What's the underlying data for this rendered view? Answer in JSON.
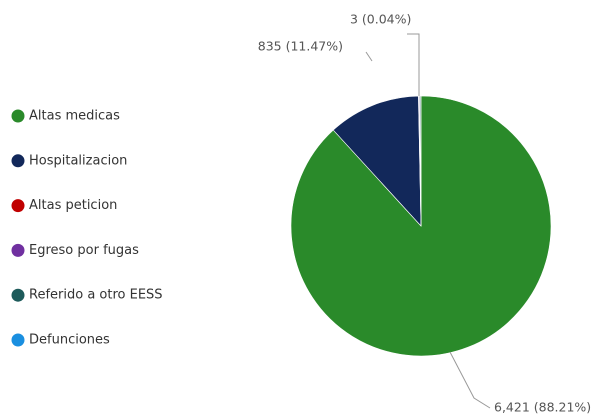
{
  "chart_data": {
    "type": "pie",
    "categories": [
      "Altas medicas",
      "Hospitalizacion",
      "Altas peticion",
      "Egreso por fugas",
      "Referido a otro EESS",
      "Defunciones"
    ],
    "values": [
      6421,
      835,
      3,
      7,
      10,
      3
    ],
    "value_labels": [
      "6,421 (88.21%)",
      "835 (11.47%)",
      "3 (0.04%)",
      null,
      null,
      null
    ],
    "colors": [
      "#2a8a2a",
      "#12285a",
      "#c00000",
      "#7030a0",
      "#1d5a5a",
      "#1a8fe0"
    ],
    "legend": "left"
  }
}
